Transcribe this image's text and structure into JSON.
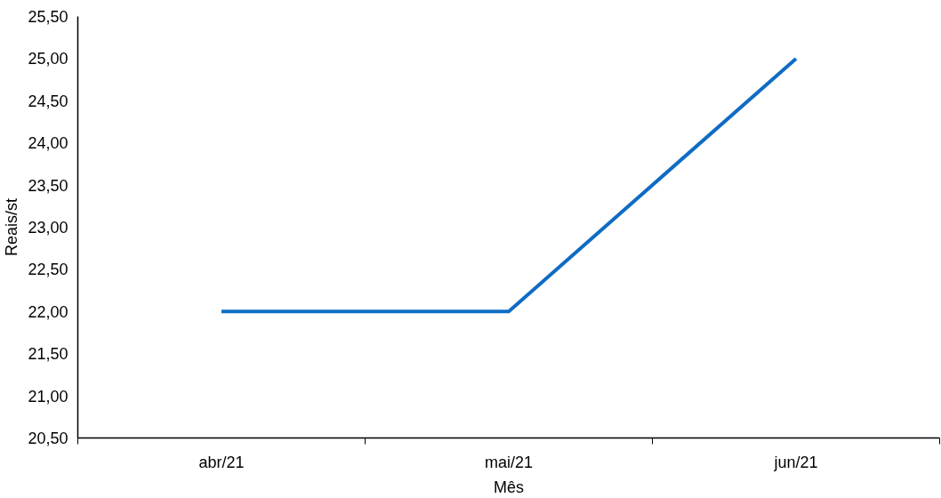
{
  "chart_data": {
    "type": "line",
    "xlabel": "Mês",
    "ylabel": "Reais/st",
    "categories": [
      "abr/21",
      "mai/21",
      "jun/21"
    ],
    "series": [
      {
        "color": "#0f6cc4",
        "values": [
          22,
          22,
          25
        ]
      }
    ],
    "ylim": [
      20.5,
      25.5
    ],
    "yticks": [
      {
        "value": 20.5,
        "label": "20,50"
      },
      {
        "value": 21,
        "label": "21,00"
      },
      {
        "value": 21.5,
        "label": "21,50"
      },
      {
        "value": 22,
        "label": "22,00"
      },
      {
        "value": 22.5,
        "label": "22,50"
      },
      {
        "value": 23,
        "label": "23,00"
      },
      {
        "value": 23.5,
        "label": "23,50"
      },
      {
        "value": 24,
        "label": "24,00"
      },
      {
        "value": 24.5,
        "label": "24,50"
      },
      {
        "value": 25,
        "label": "25,00"
      },
      {
        "value": 25.5,
        "label": "25,50"
      }
    ],
    "grid": false,
    "marker": "none",
    "line_style": "solid"
  }
}
